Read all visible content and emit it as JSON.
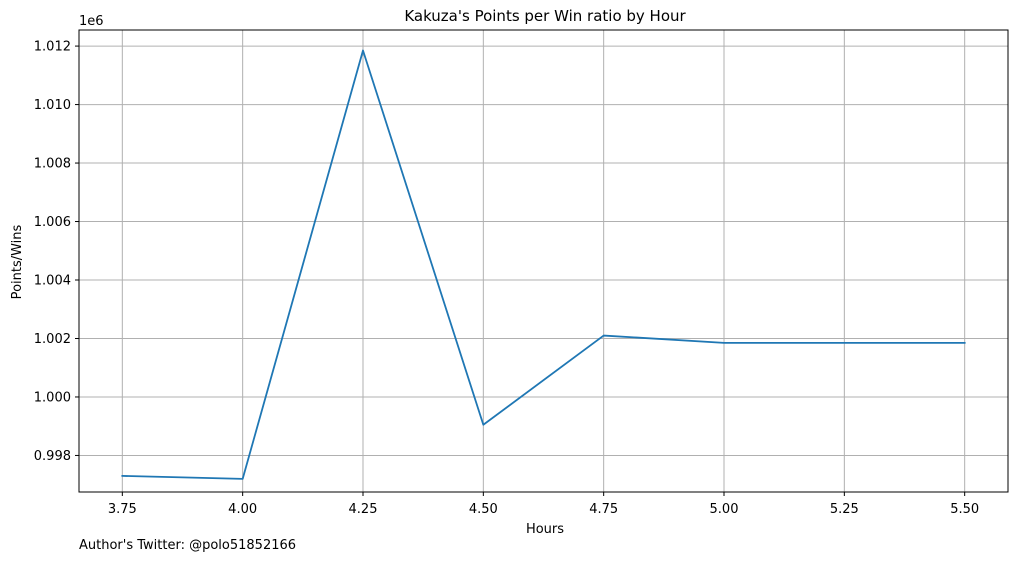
{
  "chart_data": {
    "type": "line",
    "title": "Kakuza's Points per Win ratio by Hour",
    "xlabel": "Hours",
    "ylabel": "Points/Wins",
    "y_offset_label": "1e6",
    "x": [
      3.75,
      4.0,
      4.25,
      4.5,
      4.75,
      5.0,
      5.25,
      5.5
    ],
    "series": [
      {
        "values": [
          997300,
          997200,
          1011850,
          999050,
          1002100,
          1001850,
          1001850,
          1001850
        ]
      }
    ],
    "xlim": [
      3.66,
      5.59
    ],
    "ylim": [
      996750,
      1012550
    ],
    "x_ticks": [
      3.75,
      4.0,
      4.25,
      4.5,
      4.75,
      5.0,
      5.25,
      5.5
    ],
    "x_tick_labels": [
      "3.75",
      "4.00",
      "4.25",
      "4.50",
      "4.75",
      "5.00",
      "5.25",
      "5.50"
    ],
    "y_ticks": [
      998000,
      1000000,
      1002000,
      1004000,
      1006000,
      1008000,
      1010000,
      1012000
    ],
    "y_tick_labels": [
      "0.998",
      "1.000",
      "1.002",
      "1.004",
      "1.006",
      "1.008",
      "1.010",
      "1.012"
    ],
    "grid": true,
    "line_color": "#1f77b4",
    "grid_color": "#b0b0b0"
  },
  "footnote": "Author's Twitter: @polo51852166"
}
